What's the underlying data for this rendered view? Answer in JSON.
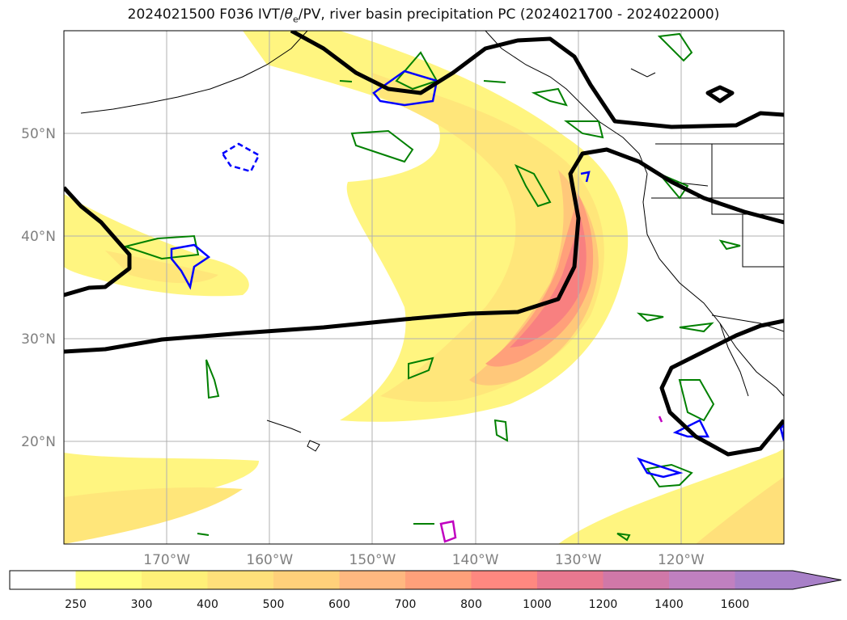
{
  "title": {
    "prefix": "2024021500 F036 IVT/",
    "theta": "θ",
    "theta_sub": "e",
    "suffix": "/PV, river basin precipitation PC (2024021700 - 2024022000)"
  },
  "map": {
    "lon_range": [
      -180,
      -110
    ],
    "lat_range": [
      10,
      60
    ],
    "lat_labels": [
      "20°N",
      "30°N",
      "40°N",
      "50°N"
    ],
    "lat_values": [
      20,
      30,
      40,
      50
    ],
    "lon_labels": [
      "170°W",
      "160°W",
      "150°W",
      "140°W",
      "130°W",
      "120°W"
    ],
    "lon_values": [
      -170,
      -160,
      -150,
      -140,
      -130,
      -120
    ],
    "grid": true,
    "colors": {
      "theta_e_contour": "#000000",
      "pv_contour": "#0000ff",
      "precip_contour": "#008000",
      "magenta_contour": "#c000c0",
      "coastline": "#000000"
    }
  },
  "colorbar": {
    "tick_labels": [
      "250",
      "300",
      "400",
      "500",
      "600",
      "700",
      "800",
      "1000",
      "1200",
      "1400",
      "1600"
    ],
    "colors": [
      "#ffffff",
      "#ffff80",
      "#fff078",
      "#ffe07a",
      "#ffd07a",
      "#ffb880",
      "#ffa07a",
      "#ff8880",
      "#e87890",
      "#d078a8",
      "#c080c0",
      "#a880c8"
    ],
    "extend": "max"
  }
}
